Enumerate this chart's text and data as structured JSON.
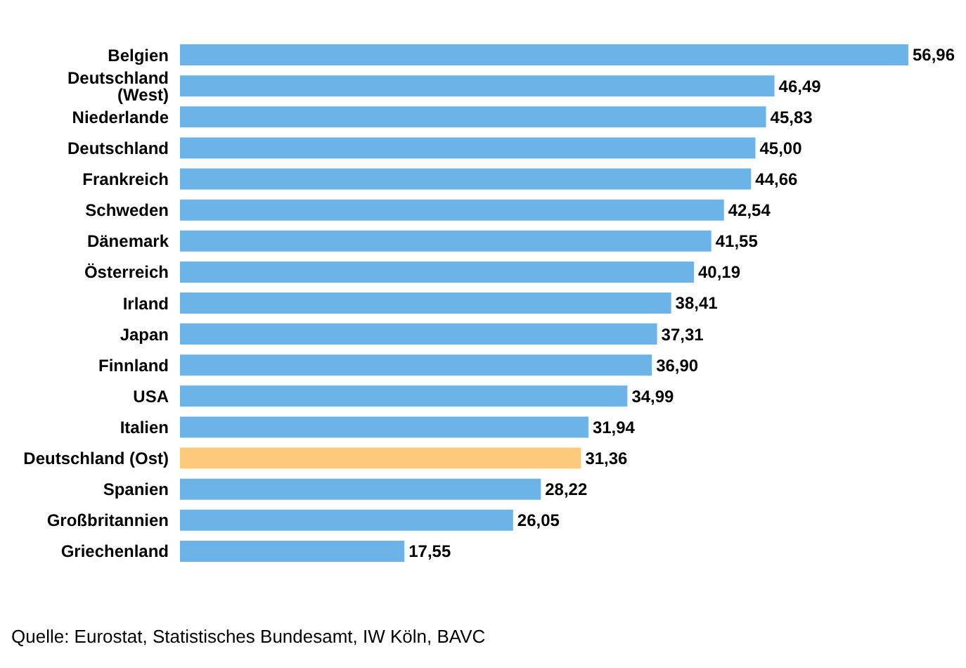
{
  "chart_data": {
    "type": "bar",
    "orientation": "horizontal",
    "tick_labels": "y",
    "legend": false,
    "grid": false,
    "categories": [
      "Belgien",
      "Deutschland (West)",
      "Niederlande",
      "Deutschland",
      "Frankreich",
      "Schweden",
      "Dänemark",
      "Österreich",
      "Irland",
      "Japan",
      "Finnland",
      "USA",
      "Italien",
      "Deutschland (Ost)",
      "Spanien",
      "Großbritannien",
      "Griechenland"
    ],
    "values": [
      56.96,
      46.49,
      45.83,
      45.0,
      44.66,
      42.54,
      41.55,
      40.19,
      38.41,
      37.31,
      36.9,
      34.99,
      31.94,
      31.36,
      28.22,
      26.05,
      17.55
    ],
    "value_labels": [
      "56,96",
      "46,49",
      "45,83",
      "45,00",
      "44,66",
      "42,54",
      "41,55",
      "40,19",
      "38,41",
      "37,31",
      "36,90",
      "34,99",
      "31,94",
      "31,36",
      "28,22",
      "26,05",
      "17,55"
    ],
    "colors": [
      "#6cb4e8",
      "#6cb4e8",
      "#6cb4e8",
      "#6cb4e8",
      "#6cb4e8",
      "#6cb4e8",
      "#6cb4e8",
      "#6cb4e8",
      "#6cb4e8",
      "#6cb4e8",
      "#6cb4e8",
      "#6cb4e8",
      "#6cb4e8",
      "#fdc97a",
      "#6cb4e8",
      "#6cb4e8",
      "#6cb4e8"
    ],
    "annotations": [
      "Quelle: Eurostat, Statistisches Bundesamt, IW Köln, BAVC"
    ]
  }
}
